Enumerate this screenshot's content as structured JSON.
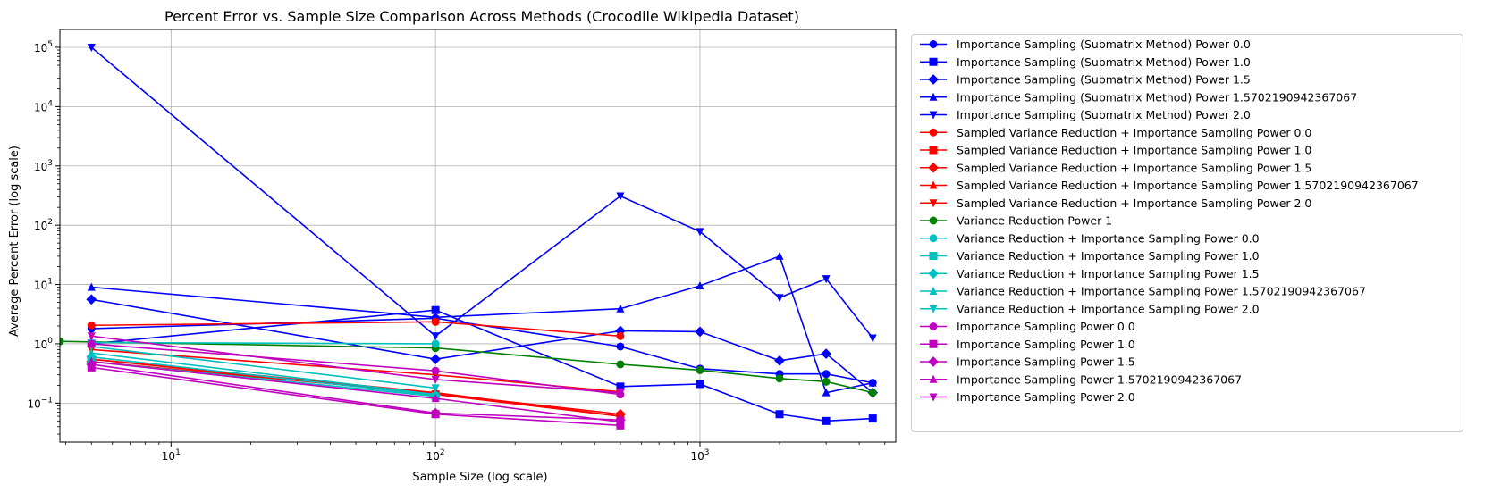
{
  "chart_data": {
    "type": "line",
    "title": "Percent Error vs. Sample Size Comparison Across Methods (Crocodile Wikipedia Dataset)",
    "xlabel": "Sample Size (log scale)",
    "ylabel": "Average Percent Error (log scale)",
    "xscale": "log",
    "yscale": "log",
    "xlim": [
      3.8,
      5500
    ],
    "ylim": [
      0.022,
      200000
    ],
    "xticks": [
      {
        "value": 10,
        "label": "10",
        "exp": "1"
      },
      {
        "value": 100,
        "label": "10",
        "exp": "2"
      },
      {
        "value": 1000,
        "label": "10",
        "exp": "3"
      }
    ],
    "yticks": [
      {
        "value": 0.1,
        "label": "10",
        "exp": "−1"
      },
      {
        "value": 1,
        "label": "10",
        "exp": "0"
      },
      {
        "value": 10,
        "label": "10",
        "exp": "1"
      },
      {
        "value": 100,
        "label": "10",
        "exp": "2"
      },
      {
        "value": 1000,
        "label": "10",
        "exp": "3"
      },
      {
        "value": 10000,
        "label": "10",
        "exp": "4"
      },
      {
        "value": 100000,
        "label": "10",
        "exp": "5"
      }
    ],
    "grid": true,
    "legend_position": "outside right",
    "series": [
      {
        "name": "Importance Sampling (Submatrix Method) Power 0.0",
        "color": "#0000ff",
        "marker": "circle",
        "x": [
          5,
          100,
          500,
          1000,
          2000,
          3000,
          4500
        ],
        "y": [
          1.8,
          2.7,
          0.9,
          0.38,
          0.31,
          0.31,
          0.22
        ]
      },
      {
        "name": "Importance Sampling (Submatrix Method) Power 1.0",
        "color": "#0000ff",
        "marker": "square",
        "x": [
          5,
          100,
          500,
          1000,
          2000,
          3000,
          4500
        ],
        "y": [
          1.0,
          3.7,
          0.19,
          0.21,
          0.065,
          0.05,
          0.055
        ]
      },
      {
        "name": "Importance Sampling (Submatrix Method) Power 1.5",
        "color": "#0000ff",
        "marker": "diamond",
        "x": [
          5,
          100,
          500,
          1000,
          2000,
          3000,
          4500
        ],
        "y": [
          5.6,
          0.55,
          1.65,
          1.6,
          0.52,
          0.68,
          0.15
        ]
      },
      {
        "name": "Importance Sampling (Submatrix Method) Power 1.5702190942367067",
        "color": "#0000ff",
        "marker": "triangle-up",
        "x": [
          5,
          100,
          500,
          1000,
          2000,
          3000,
          4500
        ],
        "y": [
          9.0,
          2.8,
          3.9,
          9.5,
          30,
          0.15,
          0.22
        ]
      },
      {
        "name": "Importance Sampling (Submatrix Method) Power 2.0",
        "color": "#0000ff",
        "marker": "triangle-down",
        "x": [
          5,
          100,
          500,
          1000,
          2000,
          3000,
          4500
        ],
        "y": [
          100000,
          1.35,
          310,
          78,
          6.0,
          12.5,
          1.25
        ]
      },
      {
        "name": "Sampled Variance Reduction + Importance Sampling Power 0.0",
        "color": "#ff0000",
        "marker": "circle",
        "x": [
          5,
          100,
          500
        ],
        "y": [
          2.05,
          2.35,
          1.35
        ]
      },
      {
        "name": "Sampled Variance Reduction + Importance Sampling Power 1.0",
        "color": "#ff0000",
        "marker": "square",
        "x": [
          5,
          100,
          500
        ],
        "y": [
          0.55,
          0.14,
          0.06
        ]
      },
      {
        "name": "Sampled Variance Reduction + Importance Sampling Power 1.5",
        "color": "#ff0000",
        "marker": "diamond",
        "x": [
          5,
          100,
          500
        ],
        "y": [
          0.5,
          0.145,
          0.065
        ]
      },
      {
        "name": "Sampled Variance Reduction + Importance Sampling Power 1.5702190942367067",
        "color": "#ff0000",
        "marker": "triangle-up",
        "x": [
          5,
          100,
          500
        ],
        "y": [
          0.55,
          0.15,
          0.06
        ]
      },
      {
        "name": "Sampled Variance Reduction + Importance Sampling Power 2.0",
        "color": "#ff0000",
        "marker": "triangle-down",
        "x": [
          5,
          100,
          500
        ],
        "y": [
          0.8,
          0.3,
          0.155
        ]
      },
      {
        "name": "Variance Reduction Power 1",
        "color": "#008000",
        "marker": "circle",
        "x": [
          3.8,
          100,
          500,
          1000,
          2000,
          3000,
          4500
        ],
        "y": [
          1.1,
          0.85,
          0.45,
          0.36,
          0.26,
          0.23,
          0.15
        ]
      },
      {
        "name": "Variance Reduction + Importance Sampling Power 0.0",
        "color": "#00bfbf",
        "marker": "circle",
        "x": [
          5,
          100
        ],
        "y": [
          1.05,
          1.0
        ]
      },
      {
        "name": "Variance Reduction + Importance Sampling Power 1.0",
        "color": "#00bfbf",
        "marker": "square",
        "x": [
          5,
          100
        ],
        "y": [
          0.5,
          0.13
        ]
      },
      {
        "name": "Variance Reduction + Importance Sampling Power 1.5",
        "color": "#00bfbf",
        "marker": "diamond",
        "x": [
          5,
          100
        ],
        "y": [
          0.6,
          0.135
        ]
      },
      {
        "name": "Variance Reduction + Importance Sampling Power 1.5702190942367067",
        "color": "#00bfbf",
        "marker": "triangle-up",
        "x": [
          5,
          100
        ],
        "y": [
          0.7,
          0.14
        ]
      },
      {
        "name": "Variance Reduction + Importance Sampling Power 2.0",
        "color": "#00bfbf",
        "marker": "triangle-down",
        "x": [
          5,
          100
        ],
        "y": [
          0.9,
          0.18
        ]
      },
      {
        "name": "Importance Sampling Power 0.0",
        "color": "#bf00bf",
        "marker": "circle",
        "x": [
          5,
          100,
          500
        ],
        "y": [
          1.0,
          0.35,
          0.14
        ]
      },
      {
        "name": "Importance Sampling Power 1.0",
        "color": "#bf00bf",
        "marker": "square",
        "x": [
          5,
          100,
          500
        ],
        "y": [
          0.4,
          0.065,
          0.042
        ]
      },
      {
        "name": "Importance Sampling Power 1.5",
        "color": "#bf00bf",
        "marker": "diamond",
        "x": [
          5,
          100,
          500
        ],
        "y": [
          0.45,
          0.068,
          0.052
        ]
      },
      {
        "name": "Importance Sampling Power 1.5702190942367067",
        "color": "#bf00bf",
        "marker": "triangle-up",
        "x": [
          5,
          100,
          500
        ],
        "y": [
          0.5,
          0.12,
          0.048
        ]
      },
      {
        "name": "Importance Sampling Power 2.0",
        "color": "#bf00bf",
        "marker": "triangle-down",
        "x": [
          5,
          100,
          500
        ],
        "y": [
          1.35,
          0.25,
          0.15
        ]
      }
    ]
  }
}
